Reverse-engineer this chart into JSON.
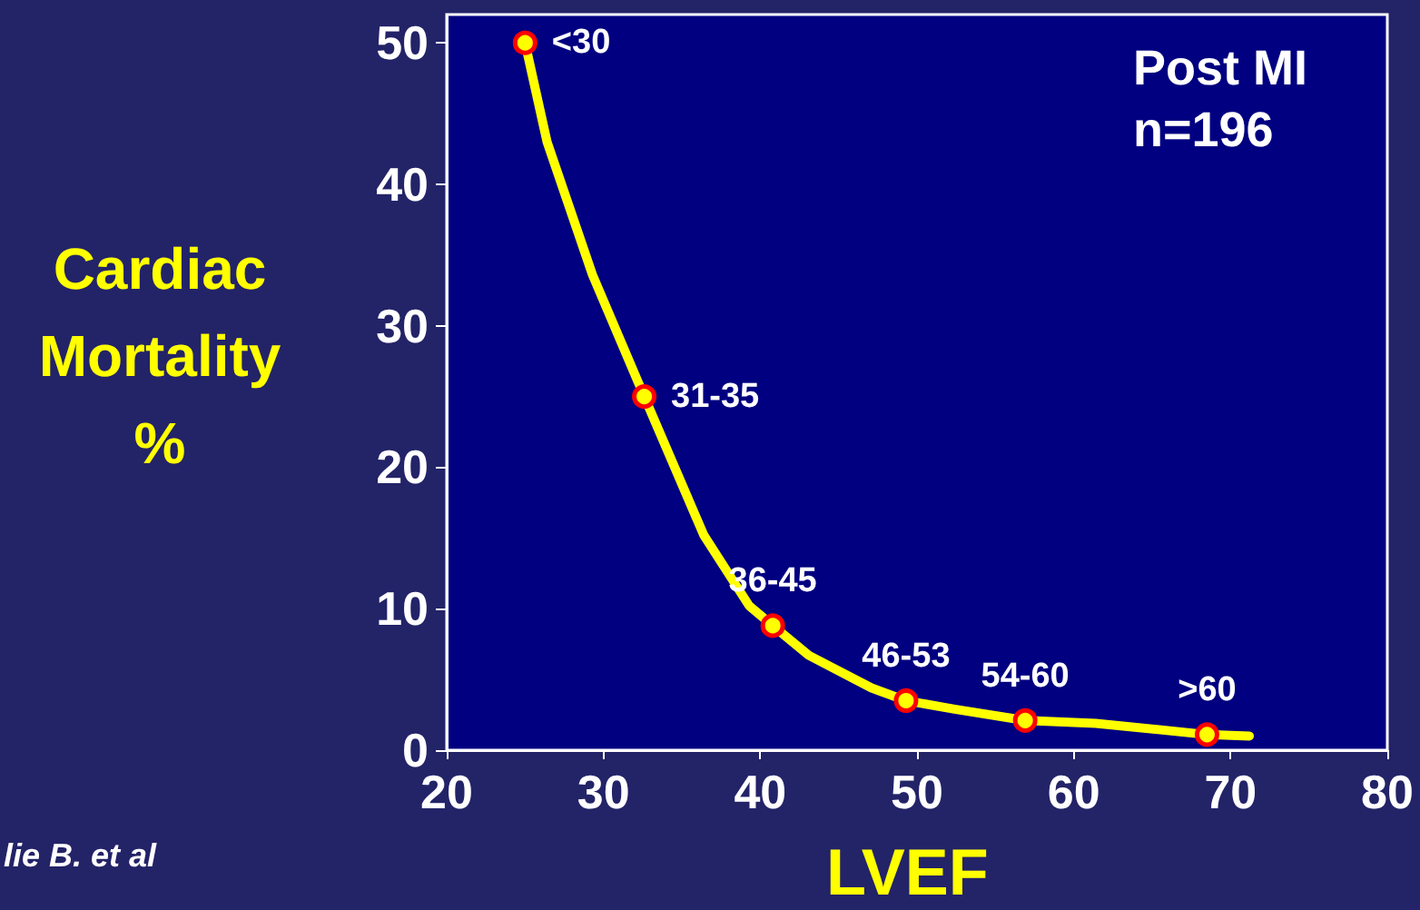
{
  "chart_data": {
    "type": "line",
    "xlabel": "LVEF",
    "ylabel": "Cardiac\nMortality\n%",
    "annotations": [
      "Post MI",
      "n=196",
      "lie B. et al"
    ],
    "xlim": [
      20,
      80
    ],
    "xticks": [
      20,
      30,
      40,
      50,
      60,
      70,
      80
    ],
    "ylim": [
      0,
      52
    ],
    "yticks": [
      0,
      10,
      20,
      30,
      40,
      50
    ],
    "grid": false,
    "series": [
      {
        "color": "#ffff00",
        "marker": "none",
        "x": [
          25,
          26.4,
          29.3,
          32.6,
          36.4,
          39.3,
          40.8,
          43.1,
          47.1,
          49.3,
          52.4,
          56.9,
          61.4,
          68.5,
          71.2
        ],
        "values": [
          50,
          43,
          33.6,
          25,
          15.2,
          10.2,
          8.8,
          6.7,
          4.4,
          3.5,
          2.9,
          2.1,
          1.9,
          1.1,
          1.0
        ]
      },
      {
        "type": "scatter",
        "color": "#ff0000",
        "marker": "circle",
        "x": [
          25,
          32.6,
          40.8,
          49.3,
          56.9,
          68.5
        ],
        "values": [
          50,
          25,
          8.8,
          3.5,
          2.1,
          1.1
        ],
        "value_labels": [
          "<30",
          "31-35",
          "36-45",
          "46-53",
          "54-60",
          ">60"
        ]
      }
    ]
  }
}
